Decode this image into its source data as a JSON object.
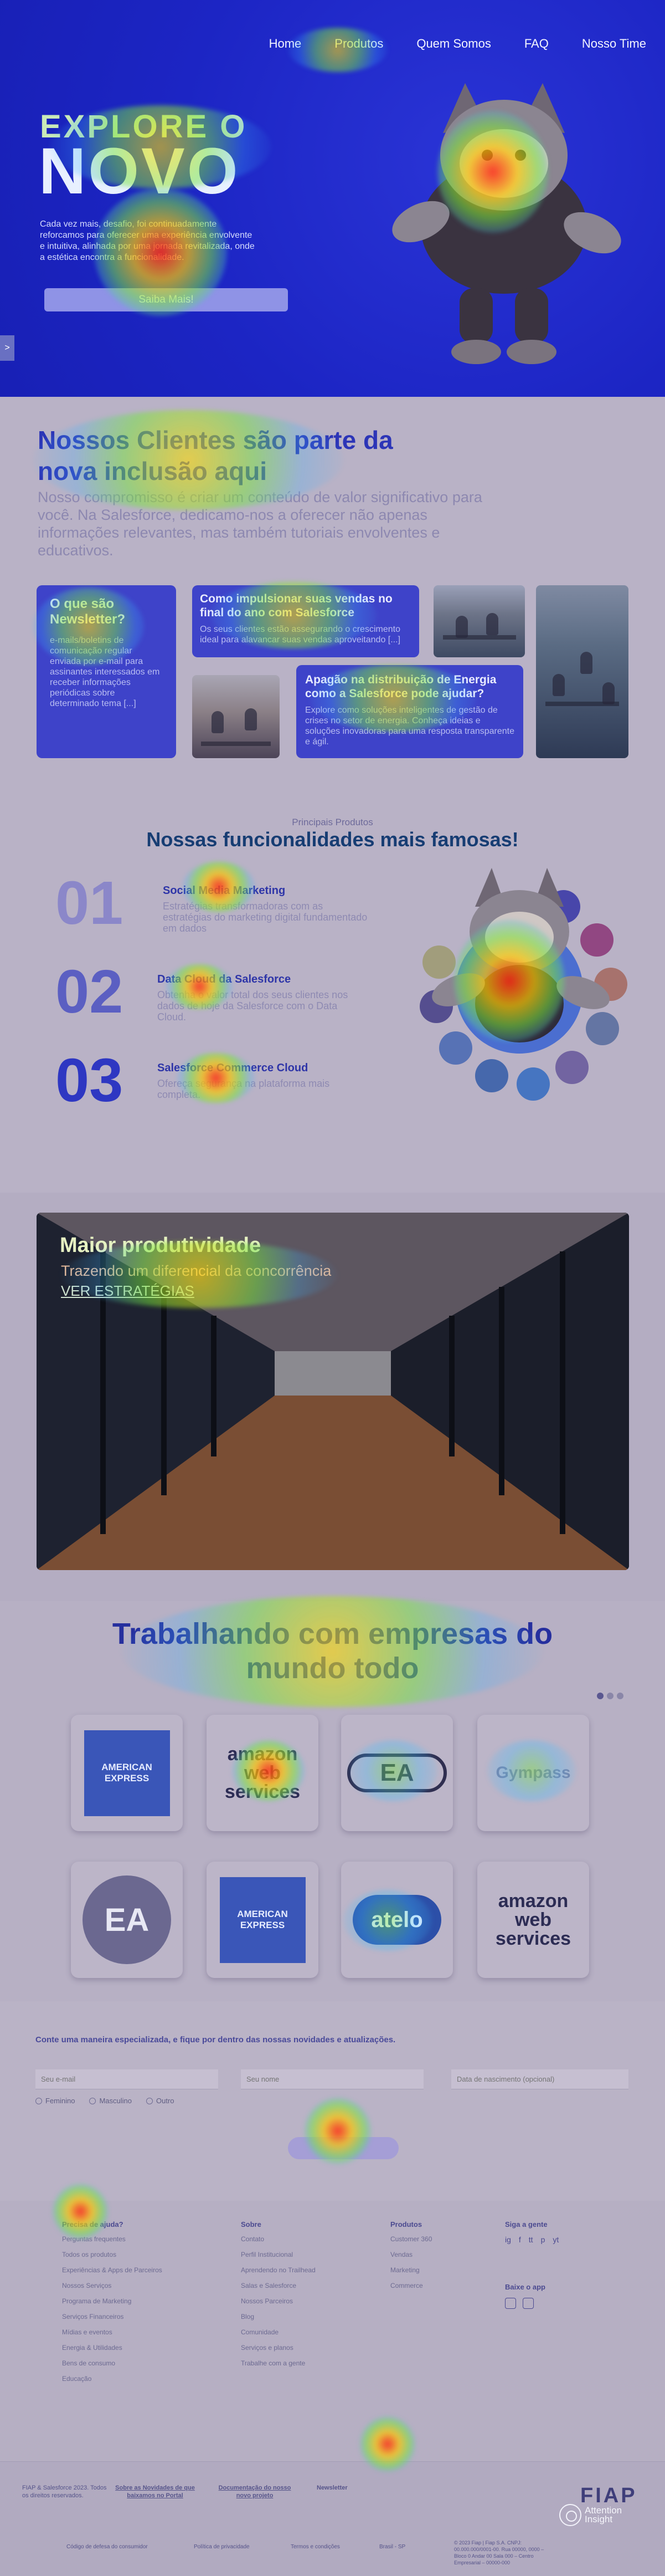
{
  "nav": {
    "items": [
      "Home",
      "Produtos",
      "Quem Somos",
      "FAQ",
      "Nosso Time"
    ]
  },
  "hero": {
    "pretitle": "EXPLORE O",
    "title": "NOVO",
    "description": "Cada vez mais, desafio, foi continuadamente reforcamos para oferecer uma experiência envolvente e intuitiva, alinhada por uma jornada revitalizada, onde a estética encontra a funcionalidade.",
    "cta": "Saiba Mais!",
    "side_tab": ">"
  },
  "clients": {
    "title": "Nossos Clientes são parte da nova inclusão aqui",
    "description": "Nosso compromisso é criar um conteúdo de valor significativo para você. Na Salesforce, dedicamo-nos a oferecer não apenas informações relevantes, mas também tutoriais envolventes e educativos.",
    "cards": [
      {
        "title": "O que são Newsletter?",
        "text": "e-mails/boletins de comunicação regular enviada por e-mail para assinantes interessados em receber informações periódicas sobre determinado tema [...]"
      },
      {
        "title": "Como impulsionar suas vendas no final do ano com Salesforce",
        "text": "Os seus clientes estão assegurando o crescimento ideal para alavancar suas vendas aproveitando [...]"
      },
      {
        "title": "Apagão na distribuição de Energia como a Salesforce pode ajudar?",
        "text": "Explore como soluções inteligentes de gestão de crises no setor de energia. Conheça ideias e soluções inovadoras para uma resposta transparente e ágil."
      }
    ]
  },
  "features": {
    "kicker": "Principais Produtos",
    "title": "Nossas funcionalidades mais famosas!",
    "items": [
      {
        "num": "01",
        "title": "Social Media Marketing",
        "text": "Estratégias transformadoras com as estratégias do marketing digital fundamentado em dados"
      },
      {
        "num": "02",
        "title": "Data Cloud da Salesforce",
        "text": "Obtenha o valor total dos seus clientes nos dados de hoje da Salesforce com o Data Cloud."
      },
      {
        "num": "03",
        "title": "Salesforce Commerce Cloud",
        "text": "Ofereça segurança na plataforma mais completa."
      }
    ]
  },
  "productivity": {
    "title": "Maior produtividade",
    "subtitle": "Trazendo um diferencial da concorrência",
    "link": "VER ESTRATÉGIAS"
  },
  "logos": {
    "title": "Trabalhando com empresas do mundo todo",
    "tiles": [
      {
        "name": "american-express",
        "label": "AMERICAN EXPRESS"
      },
      {
        "name": "amazon-web-services",
        "label": "amazon web services"
      },
      {
        "name": "ea-logo",
        "label": "EA"
      },
      {
        "name": "gympass",
        "label": "Gympass"
      },
      {
        "name": "ea-logo",
        "label": "EA"
      },
      {
        "name": "american-express",
        "label": "AMERICAN EXPRESS"
      },
      {
        "name": "atelo",
        "label": "atelo"
      },
      {
        "name": "amazon-web-services",
        "label": "amazon web services"
      }
    ]
  },
  "newsletter": {
    "title": "Conte uma maneira especializada, e fique por dentro das nossas novidades e atualizações.",
    "fields": {
      "email_placeholder": "Seu e-mail",
      "name_placeholder": "Seu nome",
      "birth_placeholder": "Data de nascimento (opcional)"
    },
    "radios": [
      "Feminino",
      "Masculino",
      "Outro"
    ]
  },
  "footer": {
    "columns": [
      {
        "title": "Precisa de ajuda?",
        "items": [
          "Perguntas frequentes",
          "Todos os produtos",
          "Experiências & Apps de Parceiros",
          "Nossos Serviços",
          "Programa de Marketing",
          "Serviços Financeiros",
          "Mídias e eventos",
          "Energia & Utilidades",
          "Bens de consumo",
          "Educação"
        ]
      },
      {
        "title": "Sobre",
        "items": [
          "Contato",
          "Perfil Institucional",
          "Aprendendo no Trailhead",
          "Salas e Salesforce",
          "Nossos Parceiros",
          "Blog",
          "Comunidade",
          "Serviços e planos",
          "Trabalhe com a gente"
        ]
      },
      {
        "title": "Produtos",
        "items": [
          "Customer 360",
          "Vendas",
          "Marketing",
          "Commerce"
        ]
      }
    ],
    "follow_title": "Siga a gente",
    "social": [
      "ig",
      "f",
      "tt",
      "p",
      "yt"
    ],
    "app_title": "Baixe o app",
    "bottom": [
      "FIAP & Salesforce 2023. Todos os direitos reservados.",
      "Sobre as Novidades de que baixamos no Portal",
      "Documentação do nosso novo projeto",
      "Newsletter"
    ],
    "brand": "FIAP",
    "legal": [
      "Código de defesa do consumidor",
      "Política de privacidade",
      "Termos e condições",
      "Brasil - SP"
    ],
    "address": "© 2023 Fiap | Fiap S.A. CNPJ: 00.000.000/0001-00. Rua 00000, 0000 – Bloco 0 Andar 00 Sala 000 – Centro Empresarial – 00000-000"
  },
  "watermark": {
    "line1": "Attention",
    "line2": "Insight"
  }
}
